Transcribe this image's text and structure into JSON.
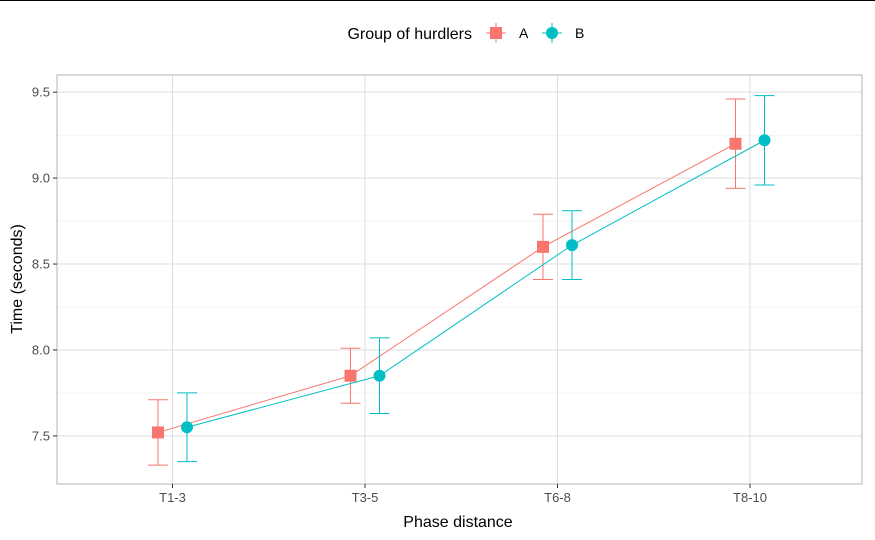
{
  "chart_data": {
    "type": "line",
    "categories": [
      "T1-3",
      "T3-5",
      "T6-8",
      "T8-10"
    ],
    "xlabel": "Phase distance",
    "ylabel": "Time (seconds)",
    "ylim": [
      7.22,
      9.6
    ],
    "yticks": [
      7.5,
      8.0,
      8.5,
      9.0,
      9.5
    ],
    "ytick_labels": [
      "7.5",
      "8.0",
      "8.5",
      "9.0",
      "9.5"
    ],
    "grid": true,
    "legend": {
      "title": "Group of hurdlers",
      "placement": "top"
    },
    "series": [
      {
        "name": "A",
        "color": "#f8766d",
        "marker": "square",
        "values": [
          7.52,
          7.85,
          8.6,
          9.2
        ],
        "lower": [
          7.33,
          7.69,
          8.41,
          8.94
        ],
        "upper": [
          7.71,
          8.01,
          8.79,
          9.46
        ]
      },
      {
        "name": "B",
        "color": "#00bfc4",
        "marker": "circle",
        "values": [
          7.55,
          7.85,
          8.61,
          9.22
        ],
        "lower": [
          7.35,
          7.63,
          8.41,
          8.96
        ],
        "upper": [
          7.75,
          8.07,
          8.81,
          9.48
        ]
      }
    ]
  }
}
